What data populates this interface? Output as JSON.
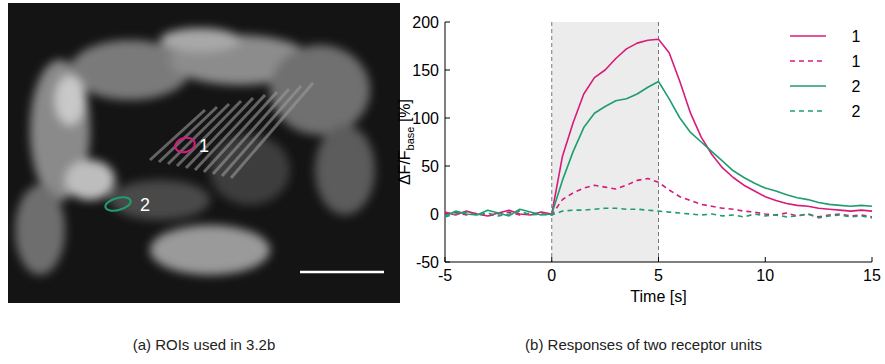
{
  "image_panel": {
    "roi_labels": [
      "1",
      "2"
    ],
    "caption": "(a) ROIs used in 3.2b"
  },
  "chart_data": {
    "type": "line",
    "caption": "(b) Responses of two receptor units",
    "xlabel": "Time [s]",
    "ylabel": {
      "main": "ΔF/F",
      "subscript": "base",
      "unit": " [%]"
    },
    "xlim": [
      -5,
      15
    ],
    "xticks": [
      -5,
      0,
      5,
      10,
      15
    ],
    "ylim": [
      -50,
      200
    ],
    "yticks": [
      -50,
      0,
      50,
      100,
      150,
      200
    ],
    "grid": false,
    "legend": "upper right",
    "shaded_interval": [
      0,
      5
    ],
    "x": [
      -5,
      -4.5,
      -4,
      -3.5,
      -3,
      -2.5,
      -2,
      -1.5,
      -1,
      -0.5,
      0,
      0.5,
      1,
      1.5,
      2,
      2.5,
      3,
      3.5,
      4,
      4.5,
      5,
      5.5,
      6,
      6.5,
      7,
      7.5,
      8,
      8.5,
      9,
      9.5,
      10,
      10.5,
      11,
      11.5,
      12,
      12.5,
      13,
      13.5,
      14,
      14.5,
      15
    ],
    "series": [
      {
        "name": "1",
        "color": "#d81b7a",
        "line_style": "solid",
        "values": [
          2,
          -1,
          3,
          0,
          -2,
          1,
          4,
          0,
          -1,
          2,
          0,
          60,
          95,
          125,
          142,
          150,
          162,
          172,
          178,
          181,
          182,
          168,
          138,
          105,
          80,
          62,
          48,
          38,
          30,
          24,
          18,
          14,
          11,
          9,
          8,
          6,
          5,
          4,
          3,
          4,
          3
        ]
      },
      {
        "name": "1",
        "color": "#d81b7a",
        "line_style": "dashed",
        "values": [
          0,
          2,
          -1,
          1,
          -2,
          0,
          2,
          -1,
          1,
          0,
          -1,
          15,
          22,
          27,
          30,
          28,
          26,
          30,
          35,
          37,
          33,
          25,
          18,
          14,
          10,
          8,
          6,
          5,
          3,
          2,
          0,
          -1,
          1,
          -2,
          0,
          -3,
          -1,
          0,
          -2,
          -1,
          -3
        ]
      },
      {
        "name": "2",
        "color": "#1e9e6e",
        "line_style": "solid",
        "values": [
          -2,
          3,
          0,
          -1,
          4,
          1,
          -2,
          5,
          2,
          -1,
          0,
          35,
          65,
          90,
          105,
          112,
          118,
          120,
          125,
          132,
          138,
          120,
          100,
          85,
          75,
          65,
          55,
          45,
          38,
          32,
          27,
          24,
          20,
          17,
          15,
          12,
          10,
          9,
          8,
          9,
          8
        ]
      },
      {
        "name": "2",
        "color": "#1e9e6e",
        "line_style": "dashed",
        "values": [
          -3,
          0,
          2,
          -1,
          1,
          -2,
          0,
          3,
          -1,
          0,
          -1,
          3,
          4,
          4,
          5,
          6,
          6,
          5,
          5,
          4,
          3,
          2,
          1,
          0,
          -1,
          0,
          -2,
          -1,
          -3,
          0,
          -2,
          -1,
          -3,
          -2,
          0,
          -4,
          -2,
          -1,
          -3,
          -2,
          -4
        ]
      }
    ]
  }
}
